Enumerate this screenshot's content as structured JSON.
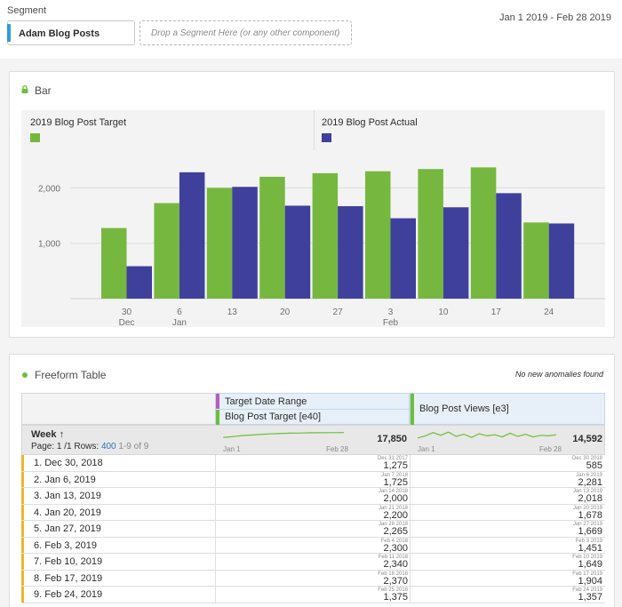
{
  "segment": {
    "label": "Segment",
    "chip": "Adam Blog Posts",
    "drop_placeholder": "Drop a Segment Here (or any other component)",
    "date_range": "Jan 1 2019 - Feb 28 2019"
  },
  "bar_panel": {
    "title": "Bar",
    "icon": "lock-icon"
  },
  "chart_data": {
    "type": "bar",
    "categories": [
      "30",
      "6",
      "13",
      "20",
      "27",
      "3",
      "10",
      "17",
      "24"
    ],
    "category_sublabels": [
      "Dec",
      "Jan",
      "",
      "",
      "",
      "Feb",
      "",
      "",
      ""
    ],
    "series": [
      {
        "name": "2019 Blog Post Target",
        "color": "#76b83f",
        "values": [
          1275,
          1725,
          2000,
          2200,
          2265,
          2300,
          2340,
          2370,
          1375
        ]
      },
      {
        "name": "2019 Blog Post Actual",
        "color": "#3f3f9c",
        "values": [
          585,
          2281,
          2018,
          1678,
          1669,
          1451,
          1649,
          1904,
          1357
        ]
      }
    ],
    "y_ticks": [
      1000,
      2000
    ],
    "y_tick_labels": [
      "1,000",
      "2,000"
    ],
    "ylim": [
      0,
      2600
    ],
    "grid": true,
    "legend_position": "top"
  },
  "table_panel": {
    "title": "Freeform Table",
    "anomaly_text": "No new anomalies found",
    "header": {
      "col1_line1": "Target Date Range",
      "col1_line2": "Blog Post Target [e40]",
      "col2": "Blog Post Views [e3]"
    },
    "summary": {
      "week_label": "Week ↑",
      "page_prefix": "Page: 1 /1 Rows:",
      "rows_count": "400",
      "range": "1-9 of 9",
      "col1_start": "Jan 1",
      "col1_end": "Feb 28",
      "col1_total": "17,850",
      "col2_start": "Jan 1",
      "col2_end": "Feb 28",
      "col2_total": "14,592"
    },
    "spark1": [
      0.4,
      0.45,
      0.52,
      0.58,
      0.62,
      0.66,
      0.7,
      0.73,
      0.76,
      0.78,
      0.8,
      0.81,
      0.82,
      0.83,
      0.84,
      0.84,
      0.85,
      0.85,
      0.86
    ],
    "spark2": [
      0.35,
      0.55,
      0.85,
      0.6,
      0.9,
      0.5,
      0.7,
      0.4,
      0.75,
      0.55,
      0.65,
      0.45,
      0.8,
      0.5,
      0.7,
      0.45,
      0.6,
      0.55,
      0.65
    ],
    "rows": [
      {
        "week": "1. Dec 30, 2018",
        "d1": "Dec 31 2017",
        "v1": "1,275",
        "d2": "Dec 30 2018",
        "v2": "585"
      },
      {
        "week": "2. Jan 6, 2019",
        "d1": "Jan 7 2018",
        "v1": "1,725",
        "d2": "Jan 6 2019",
        "v2": "2,281"
      },
      {
        "week": "3. Jan 13, 2019",
        "d1": "Jan 14 2018",
        "v1": "2,000",
        "d2": "Jan 13 2019",
        "v2": "2,018"
      },
      {
        "week": "4. Jan 20, 2019",
        "d1": "Jan 21 2018",
        "v1": "2,200",
        "d2": "Jan 20 2019",
        "v2": "1,678"
      },
      {
        "week": "5. Jan 27, 2019",
        "d1": "Jan 28 2018",
        "v1": "2,265",
        "d2": "Jan 27 2019",
        "v2": "1,669"
      },
      {
        "week": "6. Feb 3, 2019",
        "d1": "Feb 4 2018",
        "v1": "2,300",
        "d2": "Feb 3 2019",
        "v2": "1,451"
      },
      {
        "week": "7. Feb 10, 2019",
        "d1": "Feb 11 2018",
        "v1": "2,340",
        "d2": "Feb 10 2019",
        "v2": "1,649"
      },
      {
        "week": "8. Feb 17, 2019",
        "d1": "Feb 18 2018",
        "v1": "2,370",
        "d2": "Feb 17 2019",
        "v2": "1,904"
      },
      {
        "week": "9. Feb 24, 2019",
        "d1": "Feb 25 2018",
        "v1": "1,375",
        "d2": "Feb 24 2019",
        "v2": "1,357"
      }
    ]
  }
}
